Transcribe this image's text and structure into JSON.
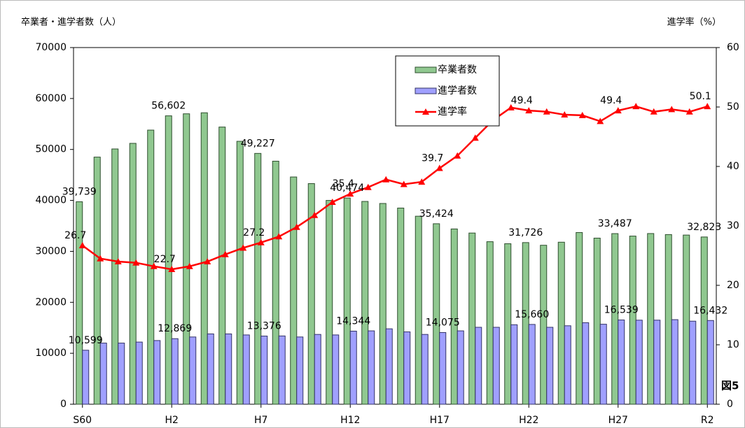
{
  "chart_data": {
    "type": "bar-line",
    "y_axis_title": "卒業者・進学者数（人）",
    "y2_axis_title": "進学率（%）",
    "figure_label": "図5",
    "categories": [
      "S60",
      null,
      null,
      null,
      null,
      "H2",
      null,
      null,
      null,
      null,
      "H7",
      null,
      null,
      null,
      null,
      "H12",
      null,
      null,
      null,
      null,
      "H17",
      null,
      null,
      null,
      null,
      "H22",
      null,
      null,
      null,
      null,
      "H27",
      null,
      null,
      null,
      null,
      "R2"
    ],
    "series": [
      {
        "name": "卒業者数",
        "type": "bar",
        "color": "#90c890",
        "edge": "#2f4f2f",
        "values": [
          39739,
          48500,
          50100,
          51200,
          53800,
          56602,
          57000,
          57200,
          54400,
          51600,
          49227,
          47700,
          44600,
          43300,
          40000,
          40474,
          39800,
          39400,
          38500,
          36900,
          35424,
          34400,
          33600,
          31900,
          31500,
          31726,
          31200,
          31800,
          33700,
          32600,
          33487,
          33000,
          33500,
          33300,
          33200,
          32823
        ],
        "value_labels": [
          "39,739",
          null,
          null,
          null,
          null,
          "56,602",
          null,
          null,
          null,
          null,
          "49,227",
          null,
          null,
          null,
          null,
          "40,474",
          null,
          null,
          null,
          null,
          "35,424",
          null,
          null,
          null,
          null,
          "31,726",
          null,
          null,
          null,
          null,
          "33,487",
          null,
          null,
          null,
          null,
          "32,823"
        ]
      },
      {
        "name": "進学者数",
        "type": "bar",
        "color": "#a0a0ff",
        "edge": "#333366",
        "values": [
          10599,
          12000,
          12000,
          12200,
          12500,
          12869,
          13200,
          13800,
          13800,
          13600,
          13376,
          13400,
          13200,
          13700,
          13600,
          14344,
          14400,
          14800,
          14200,
          13700,
          14075,
          14400,
          15100,
          15100,
          15600,
          15660,
          15100,
          15400,
          16000,
          15700,
          16539,
          16500,
          16500,
          16600,
          16300,
          16432
        ],
        "value_labels": [
          "10,599",
          null,
          null,
          null,
          null,
          "12,869",
          null,
          null,
          null,
          null,
          "13,376",
          null,
          null,
          null,
          null,
          "14,344",
          null,
          null,
          null,
          null,
          "14,075",
          null,
          null,
          null,
          null,
          "15,660",
          null,
          null,
          null,
          null,
          "16,539",
          null,
          null,
          null,
          null,
          "16,432"
        ]
      },
      {
        "name": "進学率",
        "type": "line",
        "axis": "y2",
        "color": "#ff0000",
        "values": [
          26.7,
          24.5,
          24.0,
          23.8,
          23.2,
          22.7,
          23.2,
          24.0,
          25.2,
          26.3,
          27.2,
          28.2,
          29.8,
          31.8,
          34.0,
          35.4,
          36.5,
          37.8,
          37.0,
          37.4,
          39.7,
          41.8,
          44.8,
          47.8,
          49.9,
          49.4,
          49.2,
          48.7,
          48.6,
          47.6,
          49.4,
          50.1,
          49.2,
          49.6,
          49.2,
          50.1
        ],
        "value_labels": [
          "26.7",
          null,
          null,
          null,
          null,
          "22.7",
          null,
          null,
          null,
          null,
          "27.2",
          null,
          null,
          null,
          null,
          "35.4",
          null,
          null,
          null,
          null,
          "39.7",
          null,
          null,
          null,
          null,
          "49.4",
          null,
          null,
          null,
          null,
          "49.4",
          null,
          null,
          null,
          null,
          "50.1"
        ]
      }
    ],
    "ylim": [
      0,
      70000
    ],
    "yticks": [
      0,
      10000,
      20000,
      30000,
      40000,
      50000,
      60000,
      70000
    ],
    "y2lim": [
      0,
      60
    ],
    "y2ticks": [
      0,
      10,
      20,
      30,
      40,
      50,
      60
    ],
    "grid": false,
    "legend": "top-center"
  }
}
